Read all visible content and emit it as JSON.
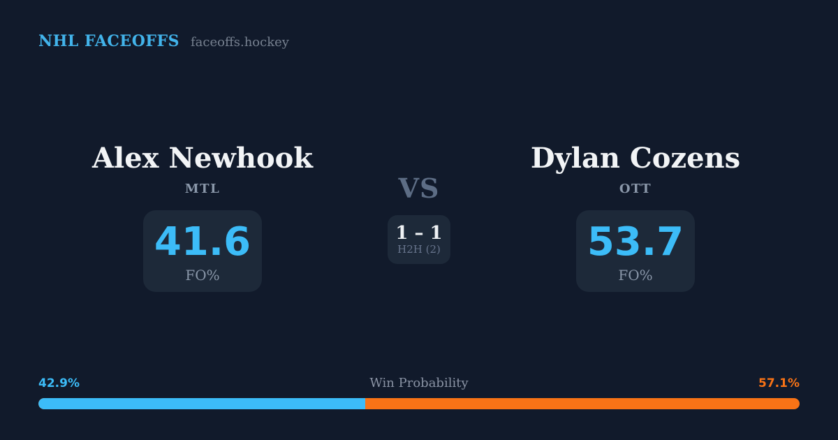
{
  "header": {
    "brand": "NHL FACEOFFS",
    "site": "faceoffs.hockey"
  },
  "players": {
    "left": {
      "name": "Alex Newhook",
      "team": "MTL",
      "stat_value": "41.6",
      "stat_label": "FO%"
    },
    "right": {
      "name": "Dylan Cozens",
      "team": "OTT",
      "stat_value": "53.7",
      "stat_label": "FO%"
    }
  },
  "versus": {
    "label": "VS",
    "h2h_score": "1 – 1",
    "h2h_label": "H2H (2)"
  },
  "win_probability": {
    "title": "Win Probability",
    "left_label": "42.9%",
    "right_label": "57.1%",
    "left_value": 42.9,
    "right_value": 57.1
  },
  "colors": {
    "background": "#111a2b",
    "card": "#1d2939",
    "accent_blue": "#3cbcf8",
    "accent_orange": "#f97316",
    "text_primary": "#f2f4f6",
    "text_muted": "#8a97a9"
  }
}
